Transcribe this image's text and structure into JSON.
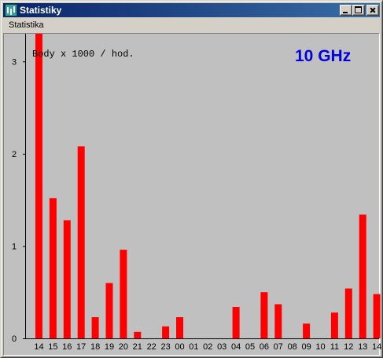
{
  "window": {
    "title": "Statistiky",
    "icon": "satellite-signal-icon",
    "buttons": {
      "minimize_icon": "minimize-icon",
      "maximize_icon": "maximize-icon",
      "close_icon": "close-icon"
    }
  },
  "menu": {
    "items": [
      {
        "label": "Statistika"
      }
    ]
  },
  "chart_data": {
    "type": "bar",
    "annotation": "Body x 1000 / hod.",
    "band_label": "10 GHz",
    "band_color": "#0000e0",
    "bar_color": "#ff0000",
    "background_color": "#c0c0c0",
    "ylim": [
      0,
      3.3
    ],
    "y_ticks": [
      0,
      1,
      2,
      3
    ],
    "grid": false,
    "categories": [
      "14",
      "15",
      "16",
      "17",
      "18",
      "19",
      "20",
      "21",
      "22",
      "23",
      "00",
      "01",
      "02",
      "03",
      "04",
      "05",
      "06",
      "07",
      "08",
      "09",
      "10",
      "11",
      "12",
      "13",
      "14"
    ],
    "values": [
      3.3,
      1.52,
      1.28,
      2.08,
      0.23,
      0.6,
      0.96,
      0.07,
      0,
      0.13,
      0.23,
      0,
      0,
      0,
      0.34,
      0,
      0.5,
      0.37,
      0,
      0.16,
      0,
      0.28,
      0.54,
      1.34,
      0.48
    ]
  }
}
